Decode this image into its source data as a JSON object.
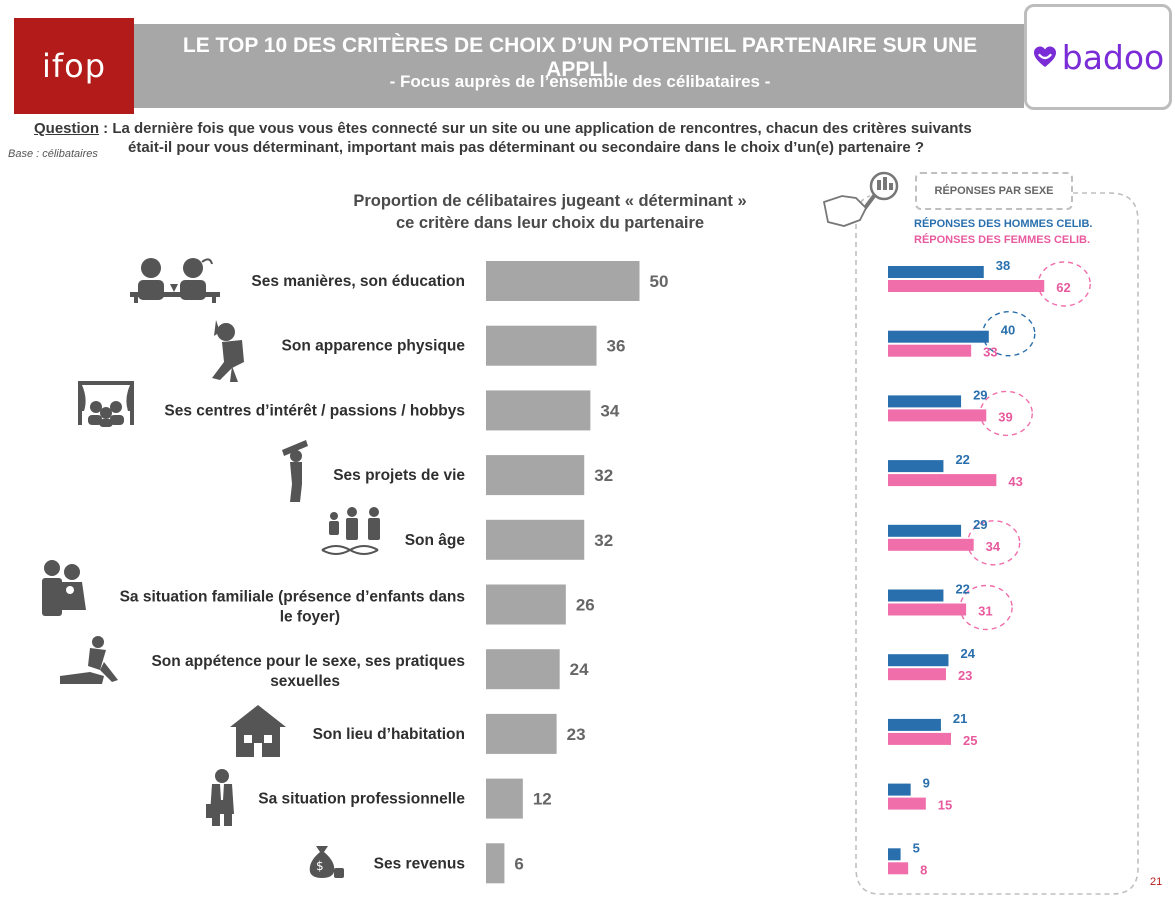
{
  "header": {
    "brand": "ifop",
    "title": "LE TOP 10 DES CRITÈRES DE CHOIX D’UN POTENTIEL PARTENAIRE SUR UNE APPLI.",
    "subtitle": "- Focus auprès de l’ensemble des célibataires -",
    "partner_logo": "badoo"
  },
  "question": {
    "label": "Question",
    "text_line1": " : La dernière fois que vous vous êtes connecté sur un site ou une application de rencontres, chacun des critères suivants",
    "text_line2": "était-il pour vous déterminant, important mais pas déterminant ou secondaire dans le choix d’un(e) partenaire ?",
    "base": "Base : célibataires"
  },
  "legend": {
    "badge": "RÉPONSES PAR SEXE",
    "men": "RÉPONSES DES HOMMES CELIB.",
    "women": "RÉPONSES DES FEMMES CELIB."
  },
  "colors": {
    "bar": "#a6a6a6",
    "men": "#2a6fad",
    "women": "#f06eaa",
    "brand_red": "#b31b1b",
    "badoo": "#7a2cd6"
  },
  "icons": [
    "dining-people-icon",
    "posing-person-icon",
    "theater-audience-icon",
    "telescope-person-icon",
    "family-dna-icon",
    "parent-child-icon",
    "couple-icon",
    "house-icon",
    "businessman-icon",
    "money-bag-icon",
    "magnifier-hand-icon",
    "badoo-heart-icon"
  ],
  "page_number": "21",
  "chart_data": [
    {
      "type": "bar",
      "title": "Proportion de célibataires jugeant « déterminant » ce critère dans leur choix du partenaire",
      "title_line1": "Proportion de célibataires jugeant « déterminant »",
      "title_line2": "ce critère dans leur choix du partenaire",
      "orientation": "horizontal",
      "categories": [
        {
          "line1": "Ses manières, son éducation",
          "line2": ""
        },
        {
          "line1": "Son apparence physique",
          "line2": ""
        },
        {
          "line1": "Ses centres d’intérêt / passions / hobbys",
          "line2": ""
        },
        {
          "line1": "Ses projets de vie",
          "line2": ""
        },
        {
          "line1": "Son âge",
          "line2": ""
        },
        {
          "line1": "Sa situation familiale (présence d’enfants dans",
          "line2": "le foyer)"
        },
        {
          "line1": "Son appétence pour le sexe, ses pratiques",
          "line2": "sexuelles"
        },
        {
          "line1": "Son lieu d’habitation",
          "line2": ""
        },
        {
          "line1": "Sa situation professionnelle",
          "line2": ""
        },
        {
          "line1": "Ses revenus",
          "line2": ""
        }
      ],
      "values": [
        50,
        36,
        34,
        32,
        32,
        26,
        24,
        23,
        12,
        6
      ],
      "xlim": [
        0,
        50
      ]
    },
    {
      "type": "bar",
      "orientation": "horizontal",
      "title": "RÉPONSES PAR SEXE",
      "series": [
        {
          "name": "RÉPONSES DES HOMMES CELIB.",
          "values": [
            38,
            40,
            29,
            22,
            29,
            22,
            24,
            21,
            9,
            5
          ]
        },
        {
          "name": "RÉPONSES DES FEMMES CELIB.",
          "values": [
            62,
            33,
            39,
            43,
            34,
            31,
            23,
            25,
            15,
            8
          ]
        }
      ],
      "highlighted": [
        {
          "series": 1,
          "index": 0
        },
        {
          "series": 0,
          "index": 1
        },
        {
          "series": 1,
          "index": 2
        },
        {
          "series": 1,
          "index": 4
        },
        {
          "series": 1,
          "index": 5
        }
      ]
    }
  ]
}
